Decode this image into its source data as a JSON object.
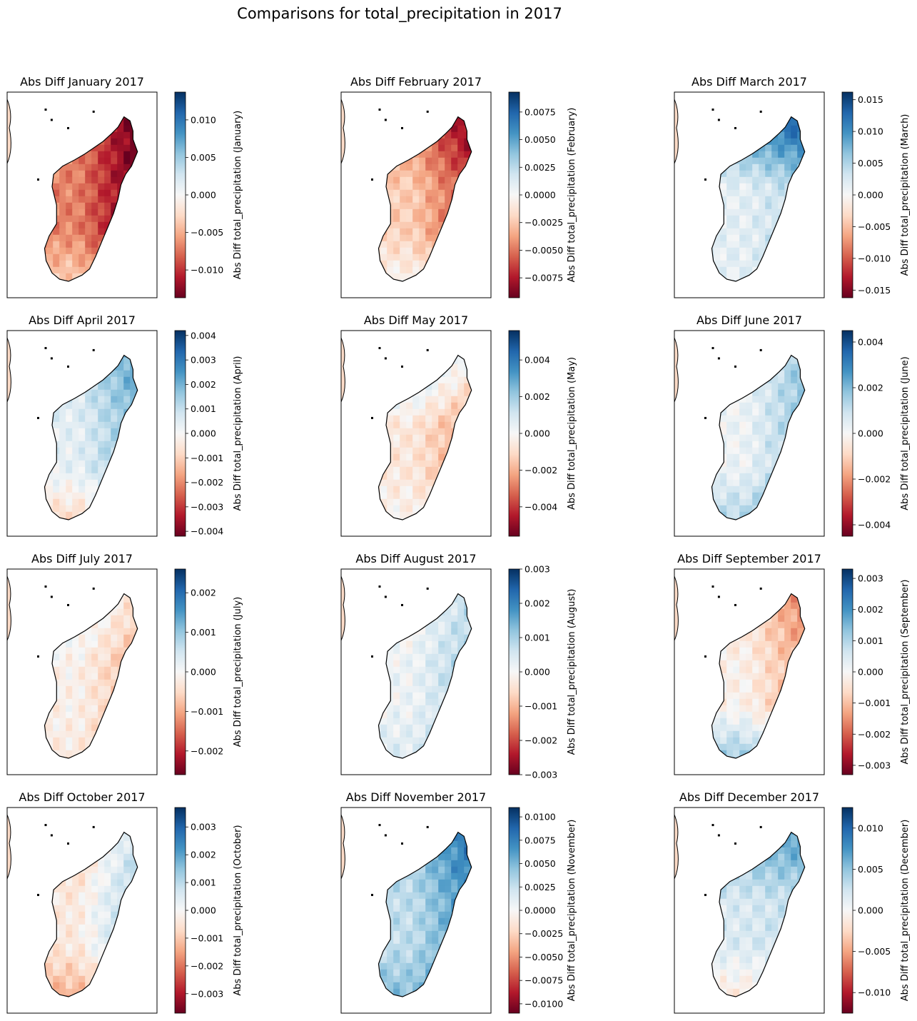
{
  "figure": {
    "suptitle": "Comparisons for total_precipitation in 2017"
  },
  "colors": {
    "cmap": "RdBu",
    "cmap_stops": [
      "#67001f",
      "#b2182b",
      "#d6604d",
      "#f4a582",
      "#fddbc7",
      "#f7f7f7",
      "#d1e5f0",
      "#92c5de",
      "#4393c3",
      "#2166ac",
      "#053061"
    ],
    "coastline": "#000000"
  },
  "chart_data": [
    {
      "type": "heatmap",
      "title": "Abs Diff January 2017",
      "colorbar_label": "Abs Diff total_precipitation (January)",
      "vlim": [
        -0.0137,
        0.0137
      ],
      "ticks": [
        -0.01,
        -0.005,
        0.0,
        0.005,
        0.01
      ],
      "tick_labels": [
        "−0.010",
        "−0.005",
        "0.000",
        "0.005",
        "0.010"
      ],
      "pattern": {
        "base": -0.5,
        "east": -0.5,
        "north": 0.0,
        "south": 0.3
      }
    },
    {
      "type": "heatmap",
      "title": "Abs Diff February 2017",
      "colorbar_label": "Abs Diff total_precipitation (February)",
      "vlim": [
        -0.0093,
        0.0093
      ],
      "ticks": [
        -0.0075,
        -0.005,
        -0.0025,
        0.0,
        0.0025,
        0.005,
        0.0075
      ],
      "tick_labels": [
        "−0.0075",
        "−0.0050",
        "−0.0025",
        "0.0000",
        "0.0025",
        "0.0050",
        "0.0075"
      ],
      "pattern": {
        "base": -0.25,
        "east": -0.45,
        "north": -0.25,
        "south": 0.25
      }
    },
    {
      "type": "heatmap",
      "title": "Abs Diff March 2017",
      "colorbar_label": "Abs Diff total_precipitation (March)",
      "vlim": [
        -0.0162,
        0.0162
      ],
      "ticks": [
        -0.015,
        -0.01,
        -0.005,
        0.0,
        0.005,
        0.01,
        0.015
      ],
      "tick_labels": [
        "−0.015",
        "−0.010",
        "−0.005",
        "0.000",
        "0.005",
        "0.010",
        "0.015"
      ],
      "pattern": {
        "base": 0.1,
        "east": 0.2,
        "north": 0.6,
        "south": 0.0
      }
    },
    {
      "type": "heatmap",
      "title": "Abs Diff April 2017",
      "colorbar_label": "Abs Diff total_precipitation (April)",
      "vlim": [
        -0.0042,
        0.0042
      ],
      "ticks": [
        -0.004,
        -0.003,
        -0.002,
        -0.001,
        0.0,
        0.001,
        0.002,
        0.003,
        0.004
      ],
      "tick_labels": [
        "−0.004",
        "−0.003",
        "−0.002",
        "−0.001",
        "0.000",
        "0.001",
        "0.002",
        "0.003",
        "0.004"
      ],
      "pattern": {
        "base": 0.1,
        "east": 0.35,
        "north": 0.1,
        "south": -0.35
      }
    },
    {
      "type": "heatmap",
      "title": "Abs Diff May 2017",
      "colorbar_label": "Abs Diff total_precipitation (May)",
      "vlim": [
        -0.0056,
        0.0056
      ],
      "ticks": [
        -0.004,
        -0.002,
        0.0,
        0.002,
        0.004
      ],
      "tick_labels": [
        "−0.004",
        "−0.002",
        "0.000",
        "0.002",
        "0.004"
      ],
      "pattern": {
        "base": -0.12,
        "east": -0.3,
        "north": 0.45,
        "south": 0.1
      }
    },
    {
      "type": "heatmap",
      "title": "Abs Diff June 2017",
      "colorbar_label": "Abs Diff total_precipitation (June)",
      "vlim": [
        -0.0045,
        0.0045
      ],
      "ticks": [
        -0.004,
        -0.002,
        0.0,
        0.002,
        0.004
      ],
      "tick_labels": [
        "−0.004",
        "−0.002",
        "0.000",
        "0.002",
        "0.004"
      ],
      "pattern": {
        "base": 0.05,
        "east": 0.35,
        "north": 0.0,
        "south": 0.3
      }
    },
    {
      "type": "heatmap",
      "title": "Abs Diff July 2017",
      "colorbar_label": "Abs Diff total_precipitation (July)",
      "vlim": [
        -0.0026,
        0.0026
      ],
      "ticks": [
        -0.002,
        -0.001,
        0.0,
        0.001,
        0.002
      ],
      "tick_labels": [
        "−0.002",
        "−0.001",
        "0.000",
        "0.001",
        "0.002"
      ],
      "pattern": {
        "base": -0.05,
        "east": -0.3,
        "north": 0.2,
        "south": -0.05
      }
    },
    {
      "type": "heatmap",
      "title": "Abs Diff August 2017",
      "colorbar_label": "Abs Diff total_precipitation (August)",
      "vlim": [
        -0.003,
        0.003
      ],
      "ticks": [
        -0.003,
        -0.002,
        -0.001,
        0.0,
        0.001,
        0.002,
        0.003
      ],
      "tick_labels": [
        "−0.003",
        "−0.002",
        "−0.001",
        "0.000",
        "0.001",
        "0.002",
        "0.003"
      ],
      "pattern": {
        "base": 0.05,
        "east": 0.3,
        "north": -0.1,
        "south": 0.1
      }
    },
    {
      "type": "heatmap",
      "title": "Abs Diff September 2017",
      "colorbar_label": "Abs Diff total_precipitation (September)",
      "vlim": [
        -0.0033,
        0.0033
      ],
      "ticks": [
        -0.003,
        -0.002,
        -0.001,
        0.0,
        0.001,
        0.002,
        0.003
      ],
      "tick_labels": [
        "−0.003",
        "−0.002",
        "−0.001",
        "0.000",
        "0.001",
        "0.002",
        "0.003"
      ],
      "pattern": {
        "base": -0.05,
        "east": -0.35,
        "north": -0.1,
        "south": 0.5
      }
    },
    {
      "type": "heatmap",
      "title": "Abs Diff October 2017",
      "colorbar_label": "Abs Diff total_precipitation (October)",
      "vlim": [
        -0.0037,
        0.0037
      ],
      "ticks": [
        -0.003,
        -0.002,
        -0.001,
        0.0,
        0.001,
        0.002,
        0.003
      ],
      "tick_labels": [
        "−0.003",
        "−0.002",
        "−0.001",
        "0.000",
        "0.001",
        "0.002",
        "0.003"
      ],
      "pattern": {
        "base": -0.1,
        "east": 0.45,
        "north": -0.15,
        "south": -0.3
      }
    },
    {
      "type": "heatmap",
      "title": "Abs Diff November 2017",
      "colorbar_label": "Abs Diff total_precipitation (November)",
      "vlim": [
        -0.011,
        0.011
      ],
      "ticks": [
        -0.01,
        -0.0075,
        -0.005,
        -0.0025,
        0.0,
        0.0025,
        0.005,
        0.0075,
        0.01
      ],
      "tick_labels": [
        "−0.0100",
        "−0.0075",
        "−0.0050",
        "−0.0025",
        "0.0000",
        "0.0025",
        "0.0050",
        "0.0075",
        "0.0100"
      ],
      "pattern": {
        "base": 0.25,
        "east": 0.4,
        "north": 0.1,
        "south": 0.2
      }
    },
    {
      "type": "heatmap",
      "title": "Abs Diff December 2017",
      "colorbar_label": "Abs Diff total_precipitation (December)",
      "vlim": [
        -0.0125,
        0.0125
      ],
      "ticks": [
        -0.01,
        -0.005,
        0.0,
        0.005,
        0.01
      ],
      "tick_labels": [
        "−0.010",
        "−0.005",
        "0.000",
        "0.005",
        "0.010"
      ],
      "pattern": {
        "base": 0.15,
        "east": 0.1,
        "north": 0.35,
        "south": -0.3
      }
    }
  ]
}
